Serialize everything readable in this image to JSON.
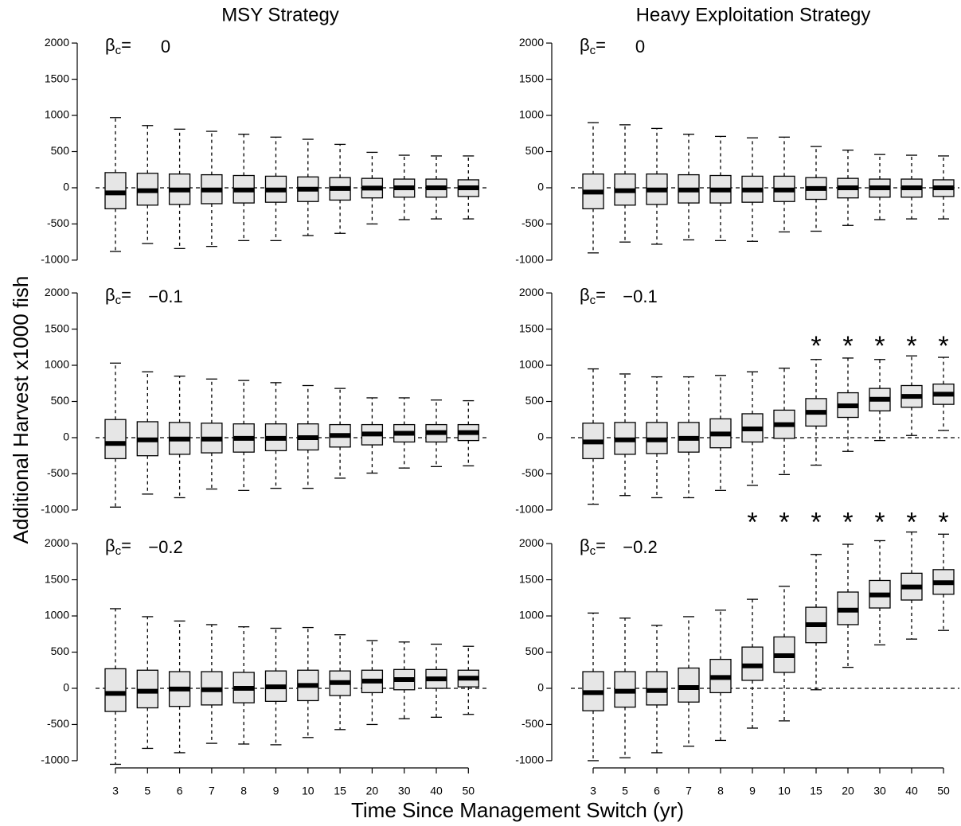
{
  "ylabel": "Additional Harvest x1000 fish",
  "xlabel": "Time Since Management Switch (yr)",
  "chart_data": [
    {
      "type": "box",
      "title": "MSY Strategy",
      "annotation": {
        "symbol": "β",
        "subscript": "c",
        "equals": "=",
        "value": "0"
      },
      "ylim": [
        -1100,
        2100
      ],
      "yticks": [
        -1000,
        -500,
        0,
        500,
        1000,
        1500,
        2000
      ],
      "hline": 0,
      "color": "#e6e6e6",
      "boxes": {
        "whisker_high": [
          970,
          860,
          810,
          780,
          740,
          700,
          670,
          600,
          490,
          450,
          440,
          440
        ],
        "q3": [
          210,
          200,
          190,
          180,
          170,
          160,
          150,
          140,
          130,
          120,
          120,
          110
        ],
        "median": [
          -70,
          -40,
          -30,
          -30,
          -30,
          -30,
          -20,
          -10,
          -5,
          0,
          0,
          0
        ],
        "q1": [
          -290,
          -240,
          -230,
          -220,
          -210,
          -200,
          -190,
          -170,
          -140,
          -130,
          -130,
          -120
        ],
        "whisker_low": [
          -880,
          -770,
          -840,
          -810,
          -730,
          -730,
          -660,
          -630,
          -500,
          -440,
          -430,
          -430
        ]
      }
    },
    {
      "type": "box",
      "title": "Heavy Exploitation Strategy",
      "annotation": {
        "symbol": "β",
        "subscript": "c",
        "equals": "=",
        "value": "0"
      },
      "ylim": [
        -1100,
        2100
      ],
      "yticks": [
        -1000,
        -500,
        0,
        500,
        1000,
        1500,
        2000
      ],
      "hline": 0,
      "color": "#e6e6e6",
      "boxes": {
        "whisker_high": [
          900,
          870,
          820,
          740,
          710,
          690,
          700,
          570,
          520,
          460,
          450,
          440
        ],
        "q3": [
          190,
          190,
          190,
          180,
          170,
          160,
          160,
          140,
          130,
          120,
          120,
          110
        ],
        "median": [
          -60,
          -40,
          -30,
          -30,
          -30,
          -30,
          -30,
          -10,
          0,
          0,
          0,
          0
        ],
        "q1": [
          -290,
          -240,
          -230,
          -210,
          -210,
          -200,
          -190,
          -160,
          -140,
          -130,
          -130,
          -120
        ],
        "whisker_low": [
          -900,
          -750,
          -780,
          -720,
          -730,
          -740,
          -610,
          -600,
          -520,
          -440,
          -430,
          -430
        ]
      }
    },
    {
      "type": "box",
      "annotation": {
        "symbol": "β",
        "subscript": "c",
        "equals": "=",
        "value": "−0.1"
      },
      "ylim": [
        -1100,
        2100
      ],
      "yticks": [
        -1000,
        -500,
        0,
        500,
        1000,
        1500,
        2000
      ],
      "hline": 0,
      "color": "#e6e6e6",
      "boxes": {
        "whisker_high": [
          1030,
          910,
          850,
          810,
          790,
          760,
          720,
          680,
          550,
          550,
          520,
          510
        ],
        "q3": [
          250,
          220,
          210,
          200,
          190,
          190,
          190,
          180,
          180,
          180,
          180,
          180
        ],
        "median": [
          -80,
          -30,
          -20,
          -20,
          -10,
          -10,
          0,
          30,
          50,
          60,
          70,
          70
        ],
        "q1": [
          -290,
          -250,
          -230,
          -210,
          -200,
          -180,
          -170,
          -130,
          -100,
          -60,
          -60,
          -40
        ],
        "whisker_low": [
          -960,
          -780,
          -830,
          -710,
          -730,
          -700,
          -700,
          -560,
          -490,
          -420,
          -400,
          -390
        ]
      }
    },
    {
      "type": "box",
      "annotation": {
        "symbol": "β",
        "subscript": "c",
        "equals": "=",
        "value": "−0.1"
      },
      "ylim": [
        -1100,
        2100
      ],
      "yticks": [
        -1000,
        -500,
        0,
        500,
        1000,
        1500,
        2000
      ],
      "hline": 0,
      "color": "#e6e6e6",
      "significance_label": "*",
      "significant": [
        false,
        false,
        false,
        false,
        false,
        false,
        false,
        true,
        true,
        true,
        true,
        true
      ],
      "boxes": {
        "whisker_high": [
          950,
          880,
          840,
          840,
          860,
          910,
          960,
          1080,
          1100,
          1080,
          1130,
          1110
        ],
        "q3": [
          200,
          210,
          210,
          210,
          260,
          330,
          380,
          540,
          620,
          680,
          720,
          740
        ],
        "median": [
          -60,
          -30,
          -30,
          -10,
          50,
          120,
          180,
          350,
          440,
          530,
          570,
          600
        ],
        "q1": [
          -290,
          -230,
          -220,
          -200,
          -140,
          -60,
          -10,
          160,
          280,
          370,
          420,
          460
        ],
        "whisker_low": [
          -920,
          -800,
          -830,
          -830,
          -730,
          -660,
          -510,
          -380,
          -190,
          -40,
          30,
          100
        ]
      }
    },
    {
      "type": "box",
      "annotation": {
        "symbol": "β",
        "subscript": "c",
        "equals": "=",
        "value": "−0.2"
      },
      "ylim": [
        -1100,
        2100
      ],
      "yticks": [
        -1000,
        -500,
        0,
        500,
        1000,
        1500,
        2000
      ],
      "hline": 0,
      "color": "#e6e6e6",
      "categories": [
        "3",
        "5",
        "6",
        "7",
        "8",
        "9",
        "10",
        "15",
        "20",
        "30",
        "40",
        "50"
      ],
      "boxes": {
        "whisker_high": [
          1100,
          990,
          930,
          880,
          850,
          830,
          840,
          740,
          660,
          640,
          610,
          580
        ],
        "q3": [
          270,
          250,
          230,
          230,
          220,
          240,
          250,
          240,
          250,
          260,
          260,
          250
        ],
        "median": [
          -70,
          -40,
          -10,
          -20,
          0,
          20,
          40,
          80,
          100,
          120,
          130,
          140
        ],
        "q1": [
          -320,
          -270,
          -250,
          -230,
          -200,
          -180,
          -170,
          -100,
          -60,
          -20,
          0,
          20
        ],
        "whisker_low": [
          -1050,
          -830,
          -890,
          -760,
          -770,
          -780,
          -680,
          -570,
          -500,
          -420,
          -400,
          -360
        ]
      }
    },
    {
      "type": "box",
      "annotation": {
        "symbol": "β",
        "subscript": "c",
        "equals": "=",
        "value": "−0.2"
      },
      "ylim": [
        -1100,
        2100
      ],
      "yticks": [
        -1000,
        -500,
        0,
        500,
        1000,
        1500,
        2000
      ],
      "hline": 0,
      "color": "#e6e6e6",
      "categories": [
        "3",
        "5",
        "6",
        "7",
        "8",
        "9",
        "10",
        "15",
        "20",
        "30",
        "40",
        "50"
      ],
      "significance_label": "*",
      "significant": [
        false,
        false,
        false,
        false,
        false,
        true,
        true,
        true,
        true,
        true,
        true,
        true
      ],
      "boxes": {
        "whisker_high": [
          1040,
          970,
          870,
          990,
          1080,
          1230,
          1410,
          1850,
          1990,
          2040,
          2160,
          2130
        ],
        "q3": [
          230,
          230,
          230,
          280,
          400,
          570,
          710,
          1120,
          1330,
          1490,
          1590,
          1640
        ],
        "median": [
          -60,
          -40,
          -30,
          10,
          150,
          310,
          450,
          880,
          1080,
          1290,
          1400,
          1460
        ],
        "q1": [
          -310,
          -260,
          -230,
          -190,
          -60,
          110,
          220,
          630,
          880,
          1110,
          1220,
          1300
        ],
        "whisker_low": [
          -1000,
          -960,
          -890,
          -800,
          -720,
          -550,
          -450,
          -20,
          290,
          600,
          680,
          800
        ]
      }
    }
  ]
}
